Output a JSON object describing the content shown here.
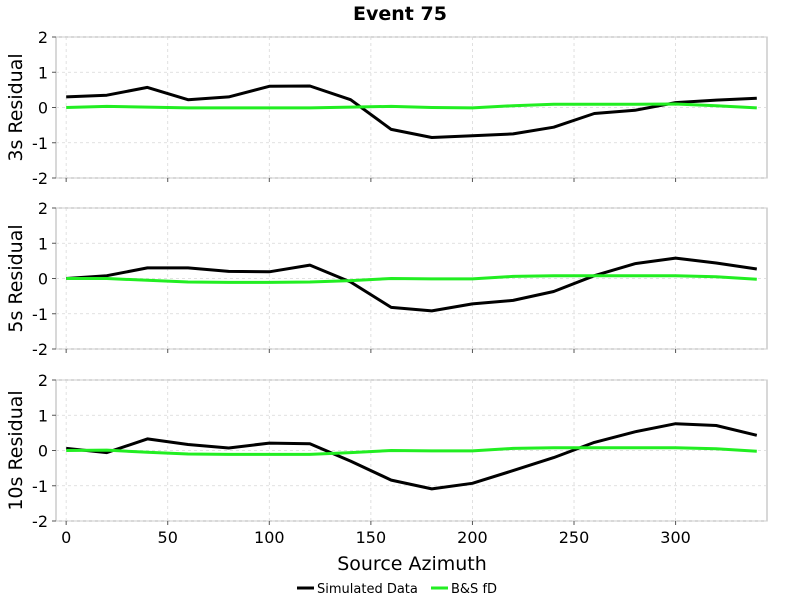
{
  "chart_data": {
    "type": "line",
    "title": "Event 75",
    "xlabel": "Source Azimuth",
    "xlim": [
      -5,
      345
    ],
    "xticks": [
      0,
      50,
      100,
      150,
      200,
      250,
      300
    ],
    "yticks": [
      -2,
      -1,
      0,
      1,
      2
    ],
    "grid": true,
    "legend_position": "bottom-center",
    "colors": {
      "Simulated Data": "#000000",
      "B&S fD": "#22ee22"
    },
    "legend": [
      "Simulated Data",
      "B&S fD"
    ],
    "x": [
      0,
      20,
      40,
      60,
      80,
      100,
      120,
      140,
      160,
      180,
      200,
      220,
      240,
      260,
      280,
      300,
      320,
      340
    ],
    "panels": [
      {
        "ylabel": "3s Residual",
        "ylim": [
          -2,
          2
        ],
        "series": [
          {
            "name": "Simulated Data",
            "values": [
              0.3,
              0.35,
              0.57,
              0.22,
              0.3,
              0.6,
              0.61,
              0.22,
              -0.62,
              -0.85,
              -0.8,
              -0.75,
              -0.56,
              -0.17,
              -0.08,
              0.14,
              0.21,
              0.26
            ]
          },
          {
            "name": "B&S fD",
            "values": [
              0.0,
              0.03,
              0.01,
              -0.01,
              -0.01,
              -0.01,
              -0.01,
              0.01,
              0.03,
              0.0,
              -0.01,
              0.05,
              0.09,
              0.09,
              0.09,
              0.1,
              0.05,
              -0.01
            ]
          }
        ]
      },
      {
        "ylabel": "5s Residual",
        "ylim": [
          -2,
          2
        ],
        "series": [
          {
            "name": "Simulated Data",
            "values": [
              0.0,
              0.08,
              0.3,
              0.3,
              0.2,
              0.19,
              0.38,
              -0.1,
              -0.82,
              -0.92,
              -0.72,
              -0.62,
              -0.37,
              0.08,
              0.42,
              0.58,
              0.44,
              0.27
            ]
          },
          {
            "name": "B&S fD",
            "values": [
              0.0,
              0.0,
              -0.05,
              -0.1,
              -0.11,
              -0.11,
              -0.1,
              -0.06,
              0.0,
              -0.01,
              -0.01,
              0.06,
              0.08,
              0.08,
              0.08,
              0.08,
              0.05,
              -0.02
            ]
          }
        ]
      },
      {
        "ylabel": "10s Residual",
        "ylim": [
          -2,
          2
        ],
        "series": [
          {
            "name": "Simulated Data",
            "values": [
              0.06,
              -0.06,
              0.33,
              0.17,
              0.07,
              0.21,
              0.19,
              -0.3,
              -0.84,
              -1.09,
              -0.93,
              -0.57,
              -0.2,
              0.23,
              0.53,
              0.76,
              0.71,
              0.43
            ]
          },
          {
            "name": "B&S fD",
            "values": [
              0.0,
              0.01,
              -0.05,
              -0.1,
              -0.11,
              -0.11,
              -0.11,
              -0.06,
              0.0,
              -0.01,
              -0.01,
              0.06,
              0.08,
              0.08,
              0.08,
              0.08,
              0.05,
              -0.02
            ]
          }
        ]
      }
    ]
  }
}
